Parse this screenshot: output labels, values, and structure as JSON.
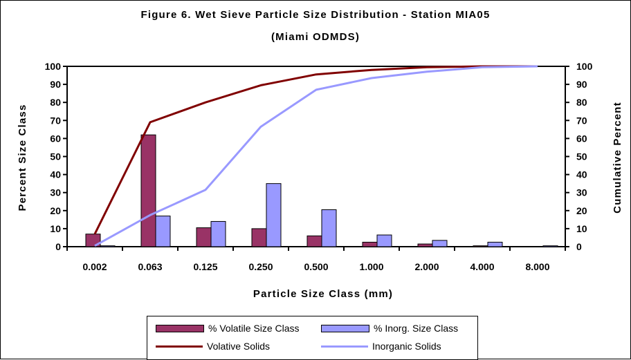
{
  "chart_data": {
    "type": "bar",
    "title": "Figure 6.  Wet Sieve Particle Size Distribution - Station MIA05",
    "subtitle": "(Miami ODMDS)",
    "xlabel": "Particle Size Class (mm)",
    "ylabel": "Percent Size Class",
    "y2label": "Cumulative Percent",
    "categories": [
      "0.002",
      "0.063",
      "0.125",
      "0.250",
      "0.500",
      "1.000",
      "2.000",
      "4.000",
      "8.000"
    ],
    "ylim": [
      0,
      100
    ],
    "y2lim": [
      0,
      100
    ],
    "yticks": [
      0,
      10,
      20,
      30,
      40,
      50,
      60,
      70,
      80,
      90,
      100
    ],
    "grid": false,
    "legend_position": "bottom",
    "series": [
      {
        "name": "% Volatile Size Class",
        "type": "bar",
        "axis": "left",
        "color": "#993366",
        "values": [
          7,
          62,
          10.5,
          10,
          6,
          2.5,
          1.5,
          0.5,
          0
        ]
      },
      {
        "name": "% Inorg. Size Class",
        "type": "bar",
        "axis": "left",
        "color": "#9999ff",
        "values": [
          0.5,
          17,
          14,
          35,
          20.5,
          6.5,
          3.5,
          2.5,
          0.5
        ]
      },
      {
        "name": "Volative Solids",
        "type": "line",
        "axis": "right",
        "color": "#800000",
        "values": [
          7,
          69,
          80,
          89.5,
          95.5,
          98,
          99.5,
          100,
          100
        ]
      },
      {
        "name": "Inorganic Solids",
        "type": "line",
        "axis": "right",
        "color": "#9999ff",
        "values": [
          0.5,
          17.5,
          31.5,
          66.5,
          87,
          93.5,
          97,
          99.5,
          100
        ]
      }
    ]
  }
}
